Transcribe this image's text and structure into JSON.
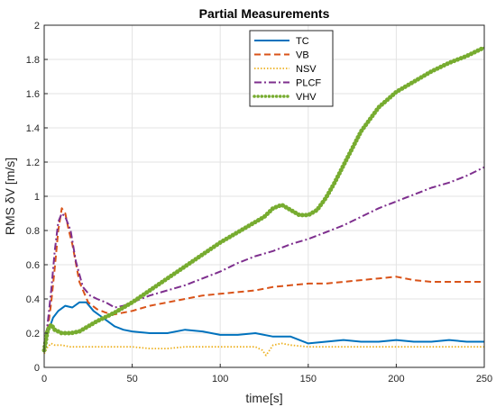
{
  "chart_data": {
    "type": "line",
    "title": "Partial Measurements",
    "xlabel": "time[s]",
    "ylabel": "RMS δV [m/s]",
    "xlim": [
      0,
      250
    ],
    "ylim": [
      0,
      2
    ],
    "xticks": [
      0,
      50,
      100,
      150,
      200,
      250
    ],
    "yticks": [
      0,
      0.2,
      0.4,
      0.6,
      0.8,
      1,
      1.2,
      1.4,
      1.6,
      1.8,
      2
    ],
    "xtick_labels": [
      "0",
      "50",
      "100",
      "150",
      "200",
      "250"
    ],
    "ytick_labels": [
      "0",
      "0.2",
      "0.4",
      "0.6",
      "0.8",
      "1",
      "1.2",
      "1.4",
      "1.6",
      "1.8",
      "2"
    ],
    "grid": true,
    "legend_position": "top-center",
    "series": [
      {
        "name": "TC",
        "color": "#0072BD",
        "style": "solid",
        "x": [
          0,
          2,
          5,
          8,
          12,
          16,
          20,
          24,
          28,
          32,
          36,
          40,
          45,
          50,
          60,
          70,
          80,
          90,
          100,
          110,
          120,
          130,
          140,
          150,
          160,
          170,
          180,
          190,
          200,
          210,
          220,
          230,
          240,
          250
        ],
        "y": [
          0.1,
          0.2,
          0.29,
          0.33,
          0.36,
          0.35,
          0.38,
          0.38,
          0.33,
          0.3,
          0.27,
          0.24,
          0.22,
          0.21,
          0.2,
          0.2,
          0.22,
          0.21,
          0.19,
          0.19,
          0.2,
          0.18,
          0.18,
          0.14,
          0.15,
          0.16,
          0.15,
          0.15,
          0.16,
          0.15,
          0.15,
          0.16,
          0.15,
          0.15
        ]
      },
      {
        "name": "VB",
        "color": "#D95319",
        "style": "dashed",
        "x": [
          0,
          2,
          4,
          6,
          8,
          10,
          12,
          14,
          16,
          20,
          25,
          30,
          35,
          40,
          50,
          60,
          70,
          80,
          90,
          100,
          110,
          120,
          130,
          140,
          150,
          160,
          170,
          180,
          190,
          200,
          210,
          220,
          230,
          240,
          250
        ],
        "y": [
          0.1,
          0.22,
          0.38,
          0.58,
          0.8,
          0.93,
          0.9,
          0.8,
          0.72,
          0.5,
          0.38,
          0.34,
          0.32,
          0.31,
          0.33,
          0.36,
          0.38,
          0.4,
          0.42,
          0.43,
          0.44,
          0.45,
          0.47,
          0.48,
          0.49,
          0.49,
          0.5,
          0.51,
          0.52,
          0.53,
          0.51,
          0.5,
          0.5,
          0.5,
          0.5
        ]
      },
      {
        "name": "NSV",
        "color": "#EDB120",
        "style": "dotted",
        "x": [
          0,
          2,
          4,
          6,
          10,
          15,
          20,
          30,
          40,
          50,
          60,
          70,
          80,
          90,
          100,
          110,
          120,
          124,
          126,
          128,
          130,
          135,
          140,
          150,
          160,
          170,
          180,
          190,
          200,
          210,
          220,
          230,
          240,
          250
        ],
        "y": [
          0.08,
          0.12,
          0.14,
          0.13,
          0.13,
          0.12,
          0.12,
          0.12,
          0.12,
          0.12,
          0.11,
          0.11,
          0.12,
          0.12,
          0.12,
          0.12,
          0.12,
          0.1,
          0.07,
          0.1,
          0.13,
          0.14,
          0.13,
          0.12,
          0.12,
          0.12,
          0.12,
          0.12,
          0.12,
          0.12,
          0.12,
          0.12,
          0.12,
          0.12
        ]
      },
      {
        "name": "PLCF",
        "color": "#7E2F8E",
        "style": "dashdot",
        "x": [
          0,
          2,
          4,
          6,
          8,
          10,
          12,
          15,
          18,
          22,
          26,
          30,
          35,
          40,
          45,
          50,
          60,
          70,
          80,
          90,
          100,
          110,
          120,
          130,
          140,
          150,
          160,
          170,
          180,
          190,
          200,
          210,
          220,
          230,
          240,
          250
        ],
        "y": [
          0.1,
          0.26,
          0.45,
          0.68,
          0.85,
          0.9,
          0.88,
          0.8,
          0.62,
          0.47,
          0.42,
          0.4,
          0.38,
          0.35,
          0.36,
          0.38,
          0.42,
          0.45,
          0.48,
          0.52,
          0.56,
          0.61,
          0.65,
          0.68,
          0.72,
          0.75,
          0.79,
          0.83,
          0.88,
          0.93,
          0.97,
          1.01,
          1.05,
          1.08,
          1.12,
          1.17
        ]
      },
      {
        "name": "VHV",
        "color": "#77AC30",
        "style": "dotted-thick",
        "x": [
          0,
          2,
          4,
          6,
          10,
          15,
          20,
          25,
          30,
          40,
          50,
          60,
          70,
          80,
          90,
          100,
          110,
          120,
          125,
          130,
          135,
          140,
          145,
          150,
          155,
          160,
          165,
          170,
          175,
          180,
          190,
          200,
          210,
          220,
          230,
          240,
          250
        ],
        "y": [
          0.1,
          0.22,
          0.25,
          0.22,
          0.2,
          0.2,
          0.21,
          0.24,
          0.27,
          0.32,
          0.38,
          0.45,
          0.52,
          0.59,
          0.66,
          0.73,
          0.79,
          0.85,
          0.88,
          0.93,
          0.95,
          0.92,
          0.89,
          0.89,
          0.92,
          0.99,
          1.08,
          1.18,
          1.28,
          1.38,
          1.52,
          1.61,
          1.67,
          1.73,
          1.78,
          1.82,
          1.87
        ]
      }
    ]
  }
}
